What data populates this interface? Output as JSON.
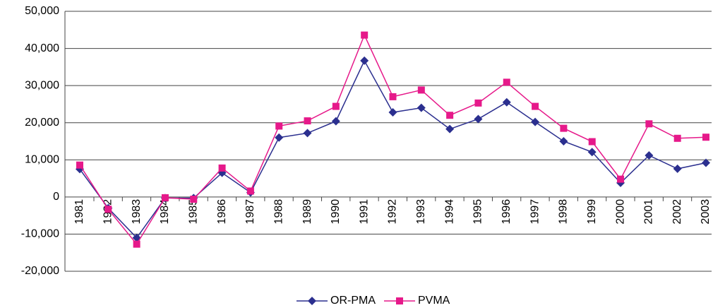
{
  "chart_data": {
    "type": "line",
    "categories": [
      "1981",
      "1982",
      "1983",
      "1984",
      "1985",
      "1986",
      "1987",
      "1988",
      "1989",
      "1990",
      "1991",
      "1992",
      "1993",
      "1994",
      "1995",
      "1996",
      "1997",
      "1998",
      "1999",
      "2000",
      "2001",
      "2002",
      "2003"
    ],
    "series": [
      {
        "name": "OR-PMA",
        "color": "#2b2f8f",
        "marker": "diamond",
        "values": [
          7500,
          -3000,
          -11000,
          -300,
          -300,
          6500,
          1200,
          16000,
          17200,
          20400,
          36700,
          22800,
          24000,
          18300,
          21000,
          25500,
          20200,
          15000,
          12100,
          3800,
          11200,
          7600,
          9200
        ]
      },
      {
        "name": "PVMA",
        "color": "#e6198a",
        "marker": "square",
        "values": [
          8600,
          -3300,
          -12700,
          -200,
          -600,
          7800,
          1600,
          19100,
          20500,
          24400,
          43600,
          27000,
          28800,
          22000,
          25300,
          30900,
          24400,
          18500,
          14900,
          4800,
          19700,
          15800,
          16100
        ]
      }
    ],
    "ylim": [
      -20000,
      50000
    ],
    "yticks": [
      {
        "value": -20000,
        "label": "-20,000"
      },
      {
        "value": -10000,
        "label": "-10,000"
      },
      0,
      {
        "value": 10000,
        "label": "10,000"
      },
      {
        "value": 20000,
        "label": "20,000"
      },
      {
        "value": 30000,
        "label": "30,000"
      },
      {
        "value": 40000,
        "label": "40,000"
      },
      {
        "value": 50000,
        "label": "50,000"
      }
    ],
    "grid": true,
    "legend": "bottom"
  }
}
